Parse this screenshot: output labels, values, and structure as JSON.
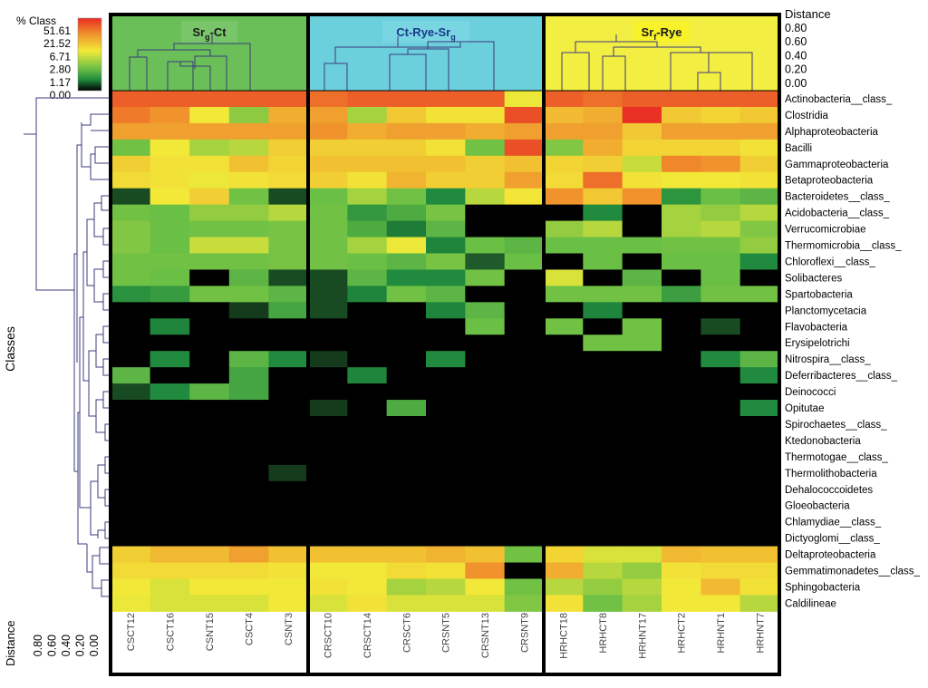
{
  "chart_data": {
    "type": "heatmap",
    "title": "",
    "legend": {
      "title": "% Class",
      "ticks": [
        "51.61",
        "21.52",
        "6.71",
        "2.80",
        "1.17",
        "0.00"
      ],
      "placement": "top-left"
    },
    "xlabel": "",
    "ylabel": "Classes",
    "distance_top": {
      "label": "Distance",
      "ticks": [
        "0.80",
        "0.60",
        "0.40",
        "0.20",
        "0.00"
      ]
    },
    "distance_bottom": {
      "label": "Distance",
      "ticks": [
        "0.80",
        "0.60",
        "0.40",
        "0.20",
        "0.00"
      ]
    },
    "groups": [
      {
        "label": "Sr",
        "sub": "g",
        "suffix": "-Ct",
        "color": "#6abf58",
        "samples": [
          "CSCT12",
          "CSCT16",
          "CSNT15",
          "CSCT4",
          "CSNT3"
        ]
      },
      {
        "label": "Ct-Rye-Sr",
        "sub": "g",
        "suffix": "",
        "color": "#6ccfdc",
        "samples": [
          "CRSCT10",
          "CRSCT14",
          "CRSCT6",
          "CRSNT5",
          "CRSNT13",
          "CRSNT9"
        ]
      },
      {
        "label": "Sr",
        "sub": "f",
        "suffix": "-Rye",
        "color": "#f3ee42",
        "samples": [
          "HRHCT18",
          "HRHCT8",
          "HRHNT17",
          "HRHCT2",
          "HRHNT1",
          "HRHNT7"
        ]
      }
    ],
    "rows": [
      "Actinobacteria__class_",
      "Clostridia",
      "Alphaproteobacteria",
      "Bacilli",
      "Gammaproteobacteria",
      "Betaproteobacteria",
      "Bacteroidetes__class_",
      "Acidobacteria__class_",
      "Verrucomicrobiae",
      "Thermomicrobia__class_",
      "Chloroflexi__class_",
      "Solibacteres",
      "Spartobacteria",
      "Planctomycetacia",
      "Flavobacteria",
      "Erysipelotrichi",
      "Nitrospira__class_",
      "Deferribacteres__class_",
      "Deinococci",
      "Opitutae",
      "Spirochaetes__class_",
      "Ktedonobacteria",
      "Thermotogae__class_",
      "Thermolithobacteria",
      "Dehalococcoidetes",
      "Gloeobacteria",
      "Chlamydiae__class_",
      "Dictyoglomi__class_",
      "Deltaproteobacteria",
      "Gemmatimonadetes__class_",
      "Sphingobacteria",
      "Caldilineae"
    ],
    "color_scale": [
      {
        "value": 0.0,
        "color": "#000000"
      },
      {
        "value": 0.6,
        "color": "#1e5a2a"
      },
      {
        "value": 1.17,
        "color": "#1f8a3e"
      },
      {
        "value": 2.8,
        "color": "#6abf45"
      },
      {
        "value": 6.71,
        "color": "#f2ea38"
      },
      {
        "value": 21.52,
        "color": "#f0892b"
      },
      {
        "value": 51.61,
        "color": "#e82b24"
      }
    ],
    "values": [
      [
        35,
        35,
        35,
        35,
        35,
        30,
        35,
        35,
        35,
        35,
        6.5,
        35,
        30,
        35,
        35,
        35,
        35
      ],
      [
        26,
        20,
        7,
        3.8,
        16,
        18,
        4.5,
        12,
        8,
        8,
        40,
        14,
        16,
        50,
        12,
        10,
        12
      ],
      [
        18,
        18,
        18,
        18,
        18,
        20,
        16,
        18,
        18,
        16,
        18,
        18,
        18,
        12,
        18,
        18,
        18
      ],
      [
        3,
        7,
        4.5,
        5,
        11,
        11,
        11,
        11,
        8,
        3,
        40,
        3.5,
        16,
        10,
        10,
        10,
        8
      ],
      [
        11,
        8,
        8,
        13,
        10,
        13,
        13,
        13,
        13,
        11,
        13,
        10,
        11,
        5.5,
        22,
        20,
        11
      ],
      [
        9,
        8,
        6.5,
        8,
        9,
        11,
        8,
        15,
        11,
        11,
        18,
        9,
        30,
        8,
        7,
        7,
        8
      ],
      [
        0.5,
        7,
        11,
        3,
        0.5,
        2.8,
        4.5,
        3,
        1.2,
        5,
        7.5,
        20,
        12,
        20,
        1.5,
        2.8,
        2.5
      ],
      [
        3,
        2.8,
        4,
        4,
        5,
        3,
        1.6,
        2.2,
        3.2,
        0,
        0,
        0,
        1.2,
        0,
        4.5,
        4,
        5
      ],
      [
        3.5,
        2.8,
        3,
        3,
        3.2,
        3,
        2.2,
        1,
        2.5,
        0,
        0,
        4,
        5,
        0,
        4.5,
        5,
        3.5
      ],
      [
        3.5,
        2.8,
        5.5,
        5.5,
        3.2,
        3,
        4.5,
        6.5,
        1.1,
        2.8,
        2.5,
        2.8,
        2.8,
        2.8,
        3,
        3,
        4
      ],
      [
        3,
        3,
        3,
        3,
        3.2,
        3,
        2.8,
        2.5,
        3.2,
        0.6,
        2.8,
        0,
        2.8,
        0,
        2.8,
        2.8,
        1.2
      ],
      [
        3,
        2.8,
        0,
        2.5,
        0.5,
        0.5,
        2.5,
        1.2,
        1.2,
        3,
        0,
        6,
        0,
        2.5,
        0,
        2.8,
        0
      ],
      [
        1.4,
        1.7,
        3,
        3,
        2.5,
        0.5,
        1.1,
        3,
        2.5,
        0,
        0,
        3,
        3,
        3,
        1.8,
        3,
        3
      ],
      [
        0,
        0,
        0,
        0.4,
        2,
        0.5,
        0,
        0,
        1.1,
        2.5,
        0,
        0,
        1.1,
        0,
        0,
        0,
        0
      ],
      [
        0,
        1.1,
        0,
        0,
        0,
        0,
        0,
        0,
        0,
        2.8,
        0,
        3,
        0,
        3,
        0,
        0.5,
        0
      ],
      [
        0,
        0,
        0,
        0,
        0,
        0,
        0,
        0,
        0,
        0,
        0,
        0,
        3,
        3,
        0,
        0,
        0
      ],
      [
        0,
        1.2,
        0,
        2.5,
        1.2,
        0.4,
        0,
        0,
        1.2,
        0,
        0,
        0,
        0,
        0,
        0,
        1.2,
        2.5
      ],
      [
        2.5,
        0,
        0,
        2,
        0,
        0,
        1.1,
        0,
        0,
        0,
        0,
        0,
        0,
        0,
        0,
        0,
        1.2
      ],
      [
        0.5,
        1.2,
        2.5,
        2,
        0,
        0,
        0,
        0,
        0,
        0,
        0,
        0,
        0,
        0,
        0,
        0,
        0
      ],
      [
        0,
        0,
        0,
        0,
        0,
        0.4,
        0,
        2.2,
        0,
        0,
        0,
        0,
        0,
        0,
        0,
        0,
        1.2
      ],
      [
        0,
        0,
        0,
        0,
        0,
        0,
        0,
        0,
        0,
        0,
        0,
        0,
        0,
        0,
        0,
        0,
        0
      ],
      [
        0,
        0,
        0,
        0,
        0,
        0,
        0,
        0,
        0,
        0,
        0,
        0,
        0,
        0,
        0,
        0,
        0
      ],
      [
        0,
        0,
        0,
        0,
        0,
        0,
        0,
        0,
        0,
        0,
        0,
        0,
        0,
        0,
        0,
        0,
        0
      ],
      [
        0,
        0,
        0,
        0,
        0.4,
        0,
        0,
        0,
        0,
        0,
        0,
        0,
        0,
        0,
        0,
        0,
        0
      ],
      [
        0,
        0,
        0,
        0,
        0,
        0,
        0,
        0,
        0,
        0,
        0,
        0,
        0,
        0,
        0,
        0,
        0
      ],
      [
        0,
        0,
        0,
        0,
        0,
        0,
        0,
        0,
        0,
        0,
        0,
        0,
        0,
        0,
        0,
        0,
        0
      ],
      [
        0,
        0,
        0,
        0,
        0,
        0,
        0,
        0,
        0,
        0,
        0,
        0,
        0,
        0,
        0,
        0,
        0
      ],
      [
        0,
        0,
        0,
        0,
        0,
        0,
        0,
        0,
        0,
        0,
        0,
        0,
        0,
        0,
        0,
        0,
        0
      ],
      [
        11,
        14,
        14,
        18,
        13,
        13,
        13,
        13,
        15,
        13,
        3,
        10,
        6,
        6,
        14,
        13,
        13
      ],
      [
        9,
        9,
        9,
        9,
        8,
        7,
        7,
        9,
        8,
        20,
        0,
        16,
        5,
        4,
        8,
        9,
        9
      ],
      [
        7,
        6,
        7,
        7,
        7,
        8,
        7,
        4.5,
        5,
        7,
        3,
        5,
        4,
        5,
        7,
        14,
        8
      ],
      [
        6.5,
        6,
        6,
        6,
        7,
        6,
        8,
        6,
        6,
        6,
        3.5,
        8,
        3,
        4.5,
        7,
        7,
        5
      ]
    ]
  }
}
